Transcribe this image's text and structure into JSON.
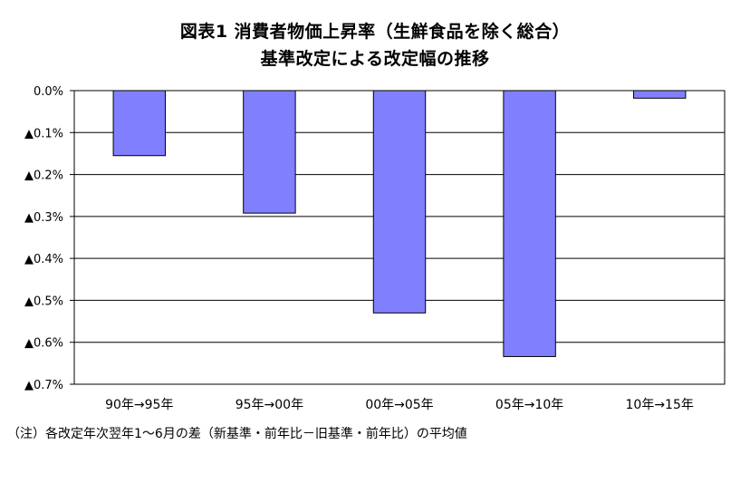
{
  "chart_data": {
    "type": "bar",
    "title": "図表1 消費者物価上昇率（生鮮食品を除く総合）",
    "subtitle": "基準改定による改定幅の推移",
    "categories": [
      "90年→95年",
      "95年→00年",
      "00年→05年",
      "05年→10年",
      "10年→15年"
    ],
    "values": [
      -0.155,
      -0.292,
      -0.53,
      -0.634,
      -0.018
    ],
    "ylim": [
      -0.7,
      0.0
    ],
    "y_ticks": [
      0.0,
      -0.1,
      -0.2,
      -0.3,
      -0.4,
      -0.5,
      -0.6,
      -0.7
    ],
    "y_tick_labels": [
      "0.0%",
      "▲0.1%",
      "▲0.2%",
      "▲0.3%",
      "▲0.4%",
      "▲0.5%",
      "▲0.6%",
      "▲0.7%"
    ],
    "bar_color": "#8080ff",
    "grid": true,
    "legend": "none"
  },
  "note": "（注）各改定年次翌年1～6月の差（新基準・前年比－旧基準・前年比）の平均値"
}
